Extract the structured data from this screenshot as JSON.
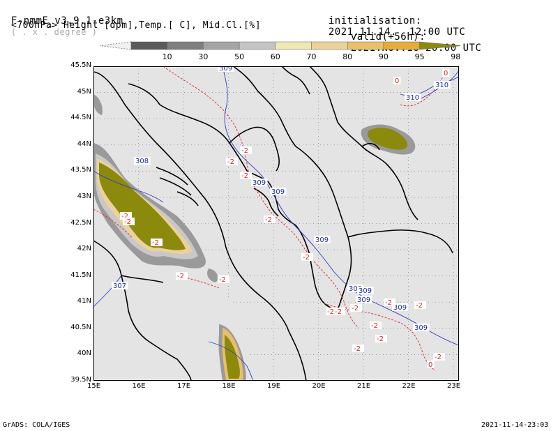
{
  "header": {
    "model": "F-nmmE_v3.9.1-e3km",
    "unit_note": "( . x . degree )",
    "variables": "<700hPa> Height [dpm],Temp.[ C], Mid.Cl.[%]",
    "init_label": "initialisation:",
    "init_value": "2021.11.14.  12:00 UTC",
    "valid_label": "valid(+56h):",
    "valid_value": "2021.NOV.16 20:00 UTC"
  },
  "colorbar": {
    "ticks": [
      "10",
      "30",
      "50",
      "60",
      "70",
      "80",
      "90",
      "95",
      "98"
    ],
    "colors": [
      "#5a5a5a",
      "#7f7f7f",
      "#a5a5a5",
      "#c4c4c4",
      "#efe8b4",
      "#ecd19a",
      "#e9bf6c",
      "#e6ac3a",
      "#8c8a0c"
    ]
  },
  "axes": {
    "lat_labels": [
      "45.5N",
      "45N",
      "44.5N",
      "44N",
      "43.5N",
      "43N",
      "42.5N",
      "42N",
      "41.5N",
      "41N",
      "40.5N",
      "40N",
      "39.5N"
    ],
    "lon_labels": [
      "15E",
      "16E",
      "17E",
      "18E",
      "19E",
      "20E",
      "21E",
      "22E",
      "23E"
    ]
  },
  "contours": {
    "height_labels": [
      "309",
      "308",
      "309",
      "309",
      "309",
      "307",
      "310",
      "310",
      "309",
      "309",
      "309",
      "309",
      "309"
    ],
    "temp_labels": [
      "-2",
      "-2",
      "-2",
      "-2",
      "-2",
      "-2",
      "-2",
      "-2",
      "-2",
      "-2",
      "-2",
      "-2",
      "-2",
      "-2",
      "-2",
      "-2",
      "-2",
      "-2",
      "0",
      "-2",
      "0",
      "0"
    ]
  },
  "footer": {
    "left": "GrADS: COLA/IGES",
    "right": "2021-11-14-23:03"
  }
}
